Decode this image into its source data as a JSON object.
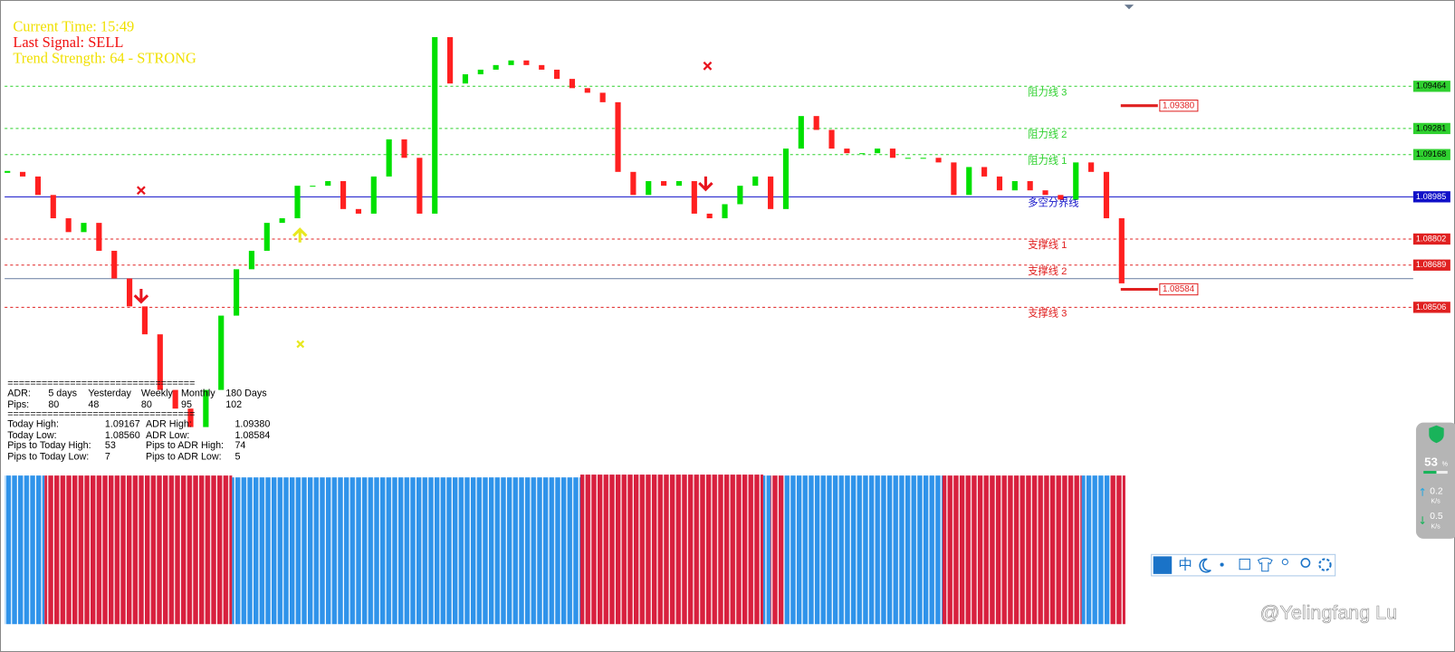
{
  "header": {
    "current_time": "Current Time: 15:49",
    "last_signal": "Last Signal: SELL",
    "trend_strength": "Trend Strength: 64 - STRONG"
  },
  "chart_data": {
    "type": "candlestick",
    "close": [
      1.09093,
      1.09073,
      1.08993,
      1.08892,
      1.08832,
      1.08872,
      1.08751,
      1.08631,
      1.0851,
      1.08389,
      1.08148,
      1.08067,
      1.07987,
      1.08148,
      1.0847,
      1.08671,
      1.08751,
      1.08872,
      1.08892,
      1.09033,
      1.09033,
      1.09053,
      1.08932,
      1.08912,
      1.09073,
      1.09234,
      1.09154,
      1.08912,
      1.09677,
      1.09476,
      1.09516,
      1.09536,
      1.09556,
      1.09576,
      1.09556,
      1.09536,
      1.09496,
      1.09456,
      1.09436,
      1.09395,
      1.09093,
      1.08993,
      1.09053,
      1.09033,
      1.09053,
      1.08912,
      1.08892,
      1.08953,
      1.09033,
      1.09073,
      1.08932,
      1.09194,
      1.09335,
      1.09275,
      1.09194,
      1.09174,
      1.09174,
      1.09194,
      1.09154,
      1.09154,
      1.09154,
      1.09134,
      1.08993,
      1.09114,
      1.09073,
      1.09013,
      1.09053,
      1.09013,
      1.08993,
      1.08973,
      1.09134,
      1.09093,
      1.08892,
      1.0861
    ],
    "ylim": [
      1.07785,
      1.09838
    ],
    "bull_color": "#00e000",
    "bear_color": "#ff2020",
    "levels": [
      {
        "name": "阻力线 3",
        "value": 1.09464,
        "color": "#2fd12f",
        "style": "dashed"
      },
      {
        "name": "阻力线 2",
        "value": 1.09281,
        "color": "#2fd12f",
        "style": "dashed"
      },
      {
        "name": "阻力线 1",
        "value": 1.09168,
        "color": "#2fd12f",
        "style": "dashed"
      },
      {
        "name": "多空分界线",
        "value": 1.08985,
        "color": "#1010c8",
        "style": "solid"
      },
      {
        "name": "支撑线 1",
        "value": 1.08802,
        "color": "#e02020",
        "style": "dashed"
      },
      {
        "name": "支撑线 2",
        "value": 1.08689,
        "color": "#e02020",
        "style": "dashed"
      },
      {
        "name": "支撑线 3",
        "value": 1.08506,
        "color": "#e02020",
        "style": "dashed"
      }
    ],
    "adr_levels": [
      {
        "value": 1.0938,
        "label": "1.09380"
      },
      {
        "value": 1.08584,
        "label": "1.08584"
      }
    ],
    "adr_color": "#e02020"
  },
  "info_panel": {
    "rows": [
      [
        "================================="
      ],
      [
        "ADR:",
        "5 days",
        "Yesterday",
        "Weekly",
        "Monthly",
        "180 Days"
      ],
      [
        "Pips:",
        "80",
        "48",
        "80",
        "95",
        "102"
      ],
      [
        "================================="
      ],
      [
        "Today High:",
        "1.09167",
        "ADR High:",
        "1.09380"
      ],
      [
        "Today Low:",
        "1.08560",
        "ADR Low:",
        "1.08584"
      ],
      [
        "Pips to Today High:",
        "53",
        "Pips to ADR High:",
        "74"
      ],
      [
        "Pips to Today Low:",
        "7",
        "Pips to ADR Low:",
        "5"
      ]
    ]
  },
  "network_widget": {
    "percent": "53",
    "percent_unit": "%",
    "upload": "0.2",
    "download": "0.5",
    "unit": "K/s"
  },
  "toolbar": {
    "first": "中"
  },
  "watermark": "@Yelingfang Lu"
}
